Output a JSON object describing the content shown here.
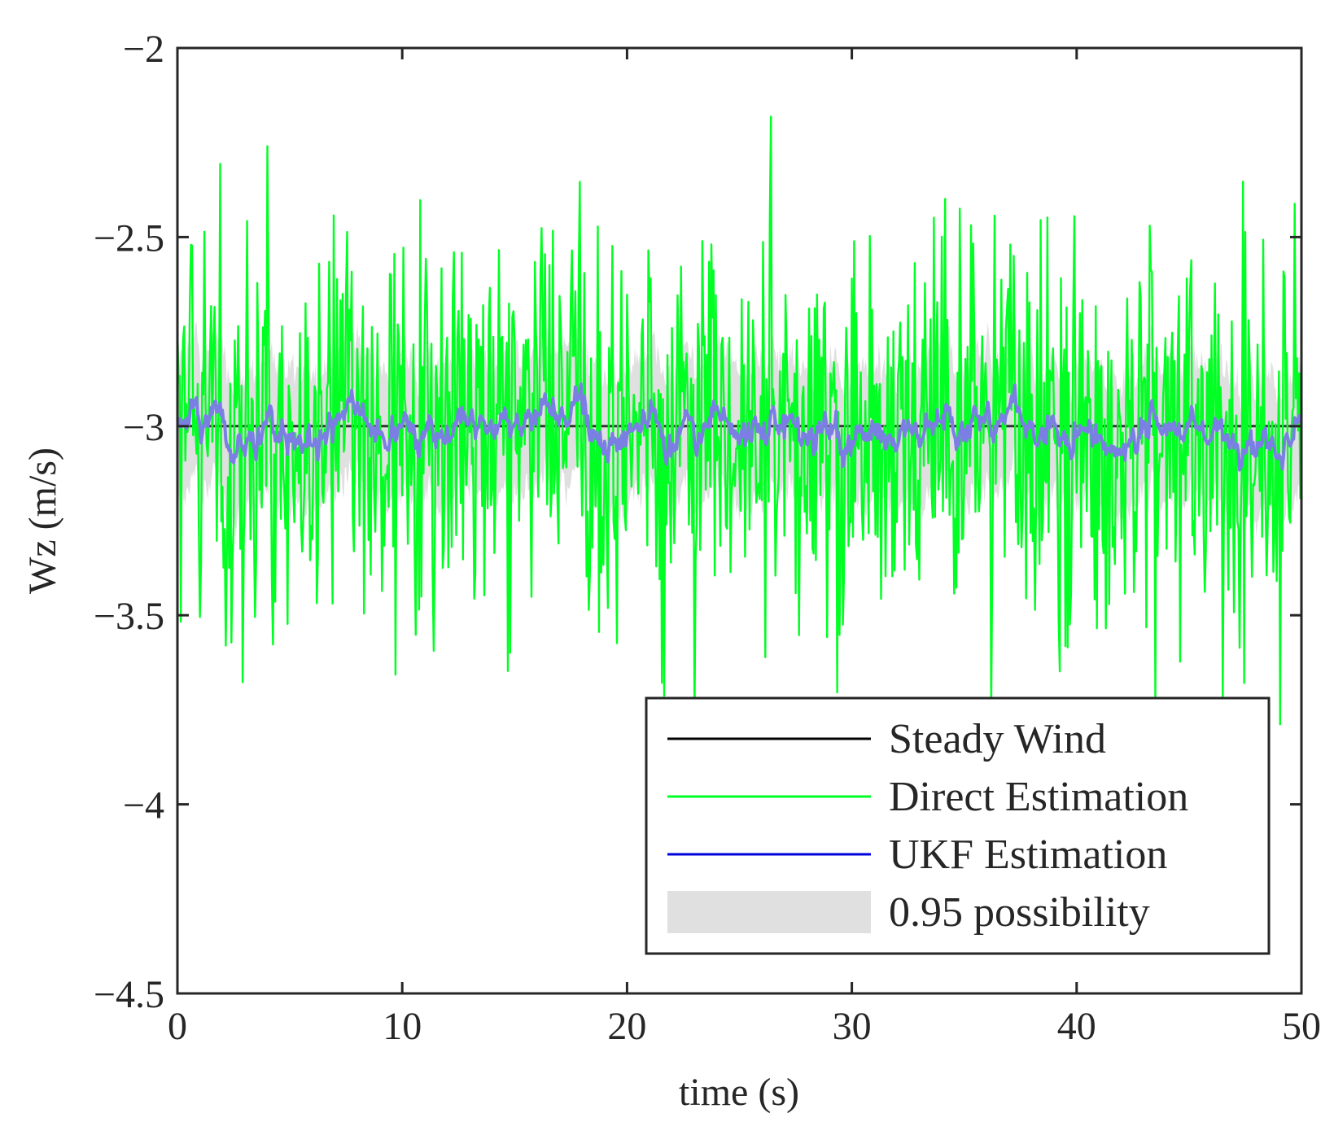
{
  "chart_data": {
    "type": "line",
    "title": "",
    "xlabel": "time (s)",
    "ylabel": "Wz (m/s)",
    "xlim": [
      0,
      50
    ],
    "ylim": [
      -4.5,
      -2
    ],
    "xticks": [
      0,
      10,
      20,
      30,
      40,
      50
    ],
    "xtick_labels": [
      "0",
      "10",
      "20",
      "30",
      "40",
      "50"
    ],
    "yticks": [
      -2,
      -2.5,
      -3,
      -3.5,
      -4,
      -4.5
    ],
    "ytick_labels": [
      "−2",
      "−2.5",
      "−3",
      "−3.5",
      "−4",
      "−4.5"
    ],
    "legend_position": "bottom-right",
    "series": [
      {
        "name": "Steady Wind",
        "kind": "line",
        "color": "#000000",
        "constant": -3
      },
      {
        "name": "Direct Estimation",
        "kind": "line",
        "color": "#00ff22",
        "mean": -3,
        "approx_range": [
          -3.98,
          -2.07
        ],
        "samples_per_second": 20
      },
      {
        "name": "UKF Estimation",
        "kind": "line",
        "color": "#0000dd",
        "plotted_color": "#7b7fe3",
        "mean": -3,
        "approx_range": [
          -3.15,
          -2.85
        ]
      },
      {
        "name": "0.95 possibility",
        "kind": "band",
        "color": "#e0e0e0",
        "approx_halfwidth": 0.18
      }
    ]
  }
}
